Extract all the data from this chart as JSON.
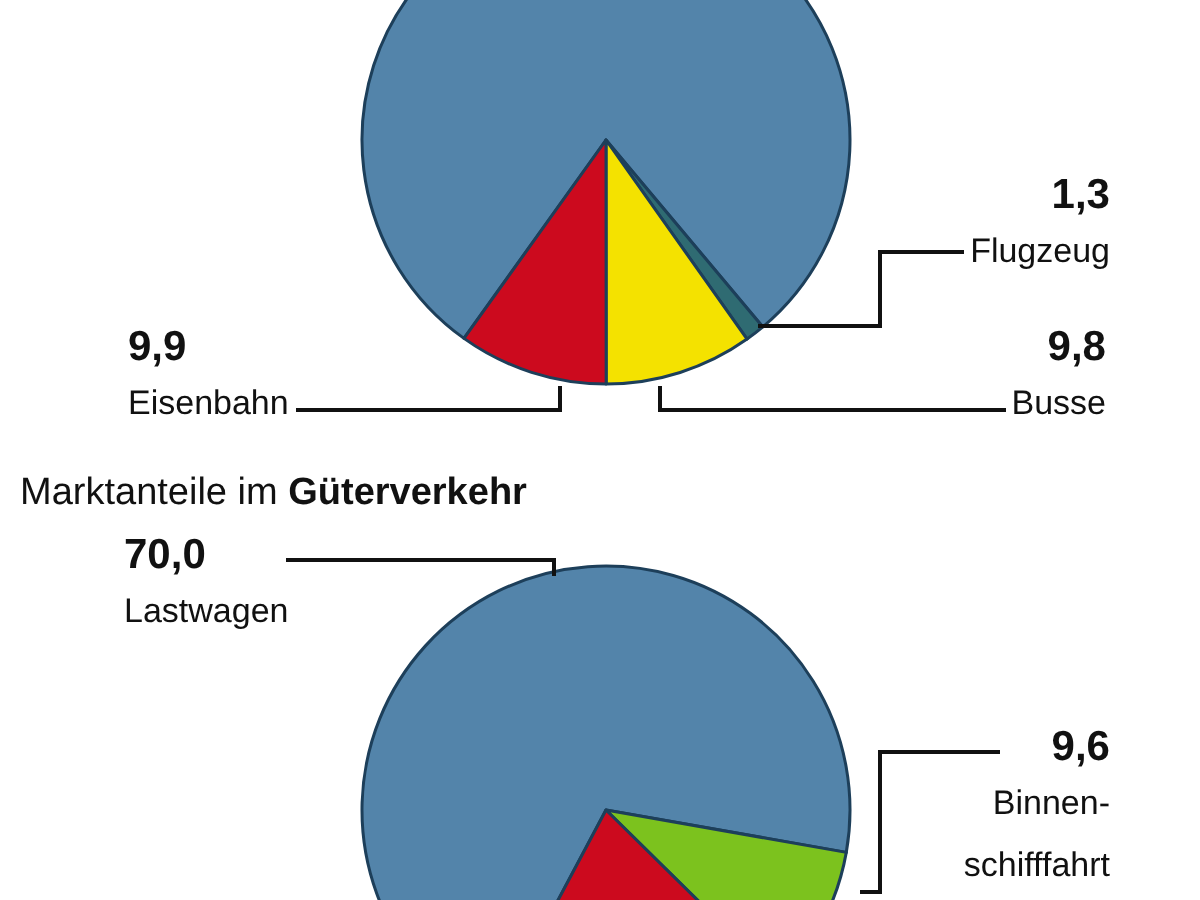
{
  "chart_data": [
    {
      "type": "pie",
      "categories": [
        null,
        "Flugzeug",
        "Busse",
        "Eisenbahn"
      ],
      "values": [
        79.0,
        1.3,
        9.8,
        9.9
      ],
      "colors": [
        "#5384aa",
        "#2f6b72",
        "#f4e200",
        "#cc0a1e"
      ],
      "value_labels": [
        null,
        "1,3",
        "9,8",
        "9,9"
      ]
    },
    {
      "type": "pie",
      "title": "Marktanteile im Güterverkehr",
      "categories": [
        "Lastwagen",
        "Binnen-\nschifffahrt",
        null
      ],
      "values": [
        70.0,
        9.6,
        20.4
      ],
      "colors": [
        "#5384aa",
        "#7cc21e",
        "#cc0a1e"
      ],
      "value_labels": [
        "70,0",
        "9,6",
        null
      ]
    }
  ]
}
